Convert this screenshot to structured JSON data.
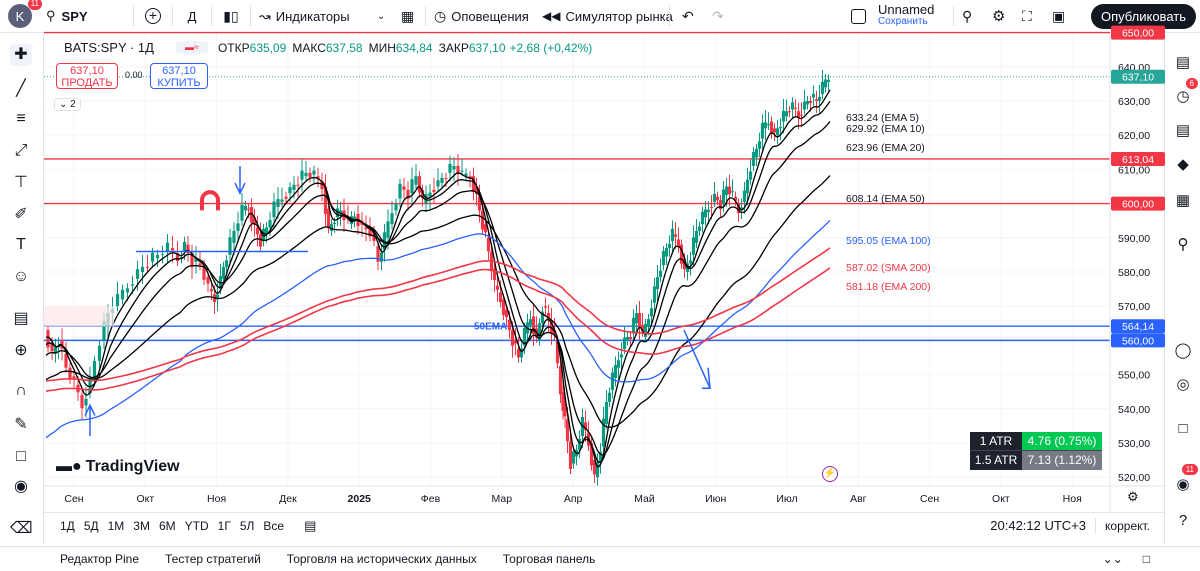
{
  "topbar": {
    "avatar_letter": "K",
    "avatar_badge": "11",
    "symbol": "SPY",
    "add_symbol": "+",
    "timeframe": "Д",
    "indicators_label": "Индикаторы",
    "alerts_label": "Оповещения",
    "replay_label": "Симулятор рынка",
    "layout_name": "Unnamed",
    "save_label": "Сохранить",
    "publish_label": "Опубликовать"
  },
  "legend": {
    "symbol_title": "BATS:SPY · 1Д",
    "open_label": "ОТКР",
    "open": "635,09",
    "high_label": "МАКС",
    "high": "637,58",
    "low_label": "МИН",
    "low": "634,84",
    "close_label": "ЗАКР",
    "close": "637,10",
    "change": "+2,68 (+0,42%)",
    "sell_price": "637,10",
    "sell_label": "ПРОДАТЬ",
    "spread": "0.00",
    "buy_price": "637,10",
    "buy_label": "КУПИТЬ",
    "collapsed_count": "2"
  },
  "chart_data": {
    "type": "candlestick",
    "x_labels": [
      "Сен",
      "Окт",
      "Ноя",
      "Дек",
      "2025",
      "Фев",
      "Мар",
      "Апр",
      "Май",
      "Июн",
      "Июл",
      "Авг",
      "Сен",
      "Окт",
      "Ноя"
    ],
    "y_ticks": [
      "640,00",
      "630,00",
      "620,00",
      "610,00",
      "600,00",
      "590,00",
      "580,00",
      "570,00",
      "560,00",
      "550,00",
      "540,00",
      "530,00",
      "520,00"
    ],
    "ylim": [
      518,
      649
    ],
    "horizontal_levels": [
      {
        "value": 650,
        "label": "650,00",
        "color": "#f23645"
      },
      {
        "value": 613.04,
        "label": "613,04",
        "color": "#f23645"
      },
      {
        "value": 600,
        "label": "600,00",
        "color": "#f23645"
      },
      {
        "value": 564.14,
        "label": "564,14",
        "color": "#2962ff"
      },
      {
        "value": 560,
        "label": "560,00",
        "color": "#2962ff"
      }
    ],
    "last_price": {
      "value": 637.1,
      "label": "637,10",
      "color": "#26a69a"
    },
    "moving_averages": [
      {
        "name": "EMA 5",
        "value": 633.24,
        "label": "633.24 (EMA 5)",
        "color": "#000000"
      },
      {
        "name": "EMA 10",
        "value": 629.92,
        "label": "629.92 (EMA 10)",
        "color": "#000000"
      },
      {
        "name": "EMA 20",
        "value": 623.96,
        "label": "623.96 (EMA 20)",
        "color": "#000000"
      },
      {
        "name": "EMA 50",
        "value": 608.14,
        "label": "608.14 (EMA 50)",
        "color": "#000000"
      },
      {
        "name": "EMA 100",
        "value": 595.05,
        "label": "595.05 (EMA 100)",
        "color": "#2962ff"
      },
      {
        "name": "SMA 200",
        "value": 587.02,
        "label": "587.02 (SMA 200)",
        "color": "#f23645"
      },
      {
        "name": "EMA 200",
        "value": 581.18,
        "label": "581.18 (EMA 200)",
        "color": "#f23645"
      }
    ],
    "annotation": "50EMA",
    "watermark": "TradingView",
    "atr": [
      {
        "label": "1 ATR",
        "value": "4.76 (0.75%)",
        "color": "#00c853"
      },
      {
        "label": "1.5 ATR",
        "value": "7.13 (1.12%)",
        "color": "#787b86"
      }
    ]
  },
  "bottombar": {
    "ranges": [
      "1Д",
      "5Д",
      "1М",
      "3М",
      "6М",
      "YTD",
      "1Г",
      "5Л",
      "Все"
    ],
    "clock": "20:42:12 UTC+3",
    "adjust_label": "коррект."
  },
  "panels": {
    "tabs": [
      "Редактор Pine",
      "Тестер стратегий",
      "Торговля на исторических данных",
      "Торговая панель"
    ]
  },
  "rightbar": {
    "alerts_badge": "6",
    "notif_badge": "11"
  }
}
